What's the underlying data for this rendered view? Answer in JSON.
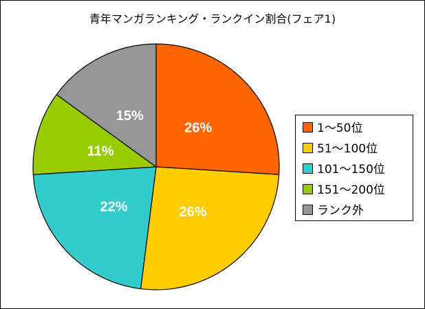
{
  "chart_data": {
    "type": "pie",
    "title": "青年マンガランキング・ランクイン割合(フェア1)",
    "categories": [
      "1〜50位",
      "51〜100位",
      "101〜150位",
      "151〜200位",
      "ランク外"
    ],
    "values": [
      26,
      26,
      22,
      11,
      15
    ],
    "value_labels": [
      "26%",
      "26%",
      "22%",
      "11%",
      "15%"
    ],
    "colors": [
      "#FF6600",
      "#FFCC00",
      "#33CCCC",
      "#99CC00",
      "#969696"
    ],
    "legend_position": "right",
    "start": "top",
    "direction": "clockwise"
  }
}
